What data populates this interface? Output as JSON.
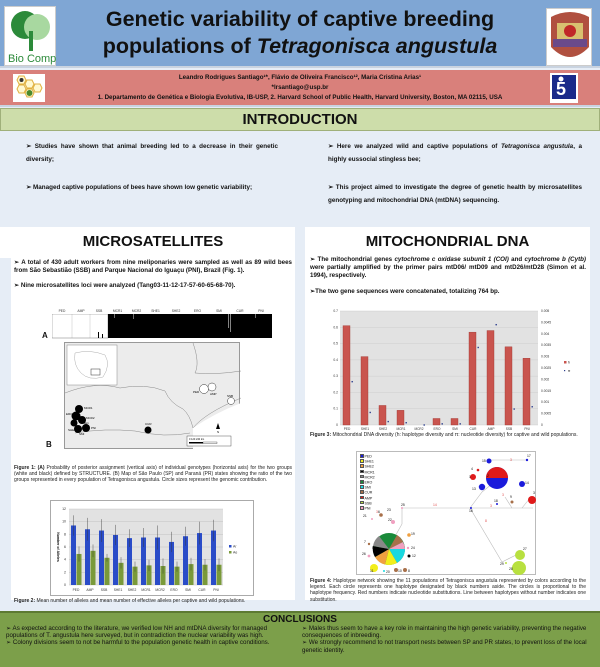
{
  "header": {
    "title_line1": "Genetic variability of captive breeding",
    "title_line2_prefix": "populations of ",
    "title_line2_species": "Tetragonisca angustula",
    "left_logo": {
      "name": "biocomp-logo",
      "text": "Bio Comp"
    },
    "right_logo": {
      "name": "usp-crest-logo"
    }
  },
  "authors": {
    "names": "Leandro Rodrigues Santiago¹*, Flávio de Oliveira Francisco¹², Maria Cristina Arias¹",
    "email": "*lrsantiago@usp.br",
    "affiliations": "1. Departamento de Genética e Biologia Evolutiva, IB-USP, 2. Harvard School of Public Health, Harvard  University, Boston, MA 02115, USA",
    "left_logo": "hexagon-bee-logo",
    "right_logo": "fapesp-logo"
  },
  "introduction": {
    "title": "INTRODUCTION",
    "bullets_left": [
      "➢ Studies have shown that animal breeding led to a decrease in their genetic diversity;",
      "➢  Managed captive populations of bees have shown low genetic variability;"
    ],
    "bullets_right": [
      {
        "pre": "➢  Here we analyzed wild and captive populations of ",
        "ital": "Tetragonisca angustula",
        "post": ", a highly eussocial stingless bee;"
      },
      {
        "pre": "➢  This project aimed to investigate the degree of genetic health by microsatellites genotyping and mitochondrial DNA (mtDNA) sequencing.",
        "ital": "",
        "post": ""
      }
    ]
  },
  "microsatellites": {
    "title": "MICROSATELLITES",
    "p1": "➢ A total of 430 adult workers from nine meliponaries were sampled as well as 89 wild bees from São Sebastião (SSB) and Parque Nacional do Iguaçu (PNI), Brazil (Fig. 1).",
    "p2": "➢ Nine microsatellites loci were analyzed (Tang03-11-12-17-57-60-65-68-70).",
    "structure_labels": [
      "PED",
      "AMP",
      "SSB",
      "MCR1",
      "MCR2",
      "SHE1",
      "SHE2",
      "ERO",
      "SMI",
      "CUR",
      "PNI"
    ],
    "panel_a": "A",
    "panel_b": "B",
    "map_labels": {
      "ped": "PED",
      "amp": "AMP",
      "ssb": "SSB",
      "mcr1": "MCR1",
      "mcr2": "MCR2",
      "she1": "SHE1",
      "she2": "SHE2",
      "ero": "ERO",
      "smi": "SMI",
      "pni": "PNI",
      "cur": "CUR",
      "north": "N",
      "scale": "0      120     240 km"
    },
    "fig1_caption_bold": "Figure 1: (A)",
    "fig1_caption": " Probability of posterior assignment (vertical axis) of individual genotypes (horizontal axis) for the two groups (white and black) defined by STRUCTURE. (B) Map of São Paulo (SP) and Paraná (PR) states showing the ratio of the two groups represented in every population of Tetragonisca angustula. Circle sizes represent the genomic contribution.",
    "fig2_caption_bold": "Figure 2:",
    "fig2_caption": "  Mean number of alleles and mean number of effective alleles per captive and wild populations."
  },
  "mtdna": {
    "title": "MITOCHONDRIAL DNA",
    "p1_a": "➢  The mitochondrial genes ",
    "p1_b": "cytochrome c oxidase subunit 1 (COI)",
    "p1_c": " and ",
    "p1_d": "cytochrome b (Cytb)",
    "p1_e": " were partially amplified by the primer pairs mtD06/ mtD09 and mtD26/mtD28 (Simon et al. 1994), respectively.",
    "p2": "➢The two gene sequences were concatenated, totalizing 764 bp.",
    "fig3_caption_bold": "Figure 3:",
    "fig3_caption": " Mitochondrial DNA diversity (h: haplotype diversity and π: nucleotide diversity) for captive and wild populations.",
    "fig4_caption_bold": "Figure 4:",
    "fig4_caption": " Haplotype network showing the 11 populations of Tetragonisca angustula represented by colors according to the legend. Each circle represents one haplotype designated by black numbers aside. The circles is proportional to the haplotype frequency. Red numbers indicate nucleotide substitutions. Line between haplotypes without number indicates one substitution.",
    "network_legend": [
      {
        "label": "PED",
        "color": "#1a1adb"
      },
      {
        "label": "SHE1",
        "color": "#f2ee1a"
      },
      {
        "label": "SHE2",
        "color": "#f0a040"
      },
      {
        "label": "MCR1",
        "color": "#000000"
      },
      {
        "label": "MCR2",
        "color": "#888888"
      },
      {
        "label": "ERO",
        "color": "#1a8a3a"
      },
      {
        "label": "SMI",
        "color": "#1ad8e0"
      },
      {
        "label": "CUR",
        "color": "#a8704a"
      },
      {
        "label": "AMP",
        "color": "#e01a1a"
      },
      {
        "label": "SSB",
        "color": "#b8e040"
      },
      {
        "label": "PNI",
        "color": "#f0a0c0"
      }
    ]
  },
  "conclusions": {
    "title": "CONCLUSIONS",
    "left": [
      "➢ As expected according to the literature, we verified low NH and mtDNA diversity for managed populations of T. angustula here surveyed, but in contradiction the nuclear variability was high.",
      "➢ Colony divisions seem to not be harmful to the population genetic health in captive conditions."
    ],
    "right": [
      "➢ Males thus seem to have a key role in maintaining the high genetic variability, preventing the negative consequences of inbreeding.",
      "➢ We strongly recommend to not transport nests between SP and PR states, to prevent loss of the local genetic identity."
    ]
  },
  "chart_data": [
    {
      "type": "bar",
      "title": "Figure 2: Mean number of alleles and mean number of effective alleles",
      "categories": [
        "PED",
        "AMP",
        "SSB",
        "SHE1",
        "SHE2",
        "MCR1",
        "MCR2",
        "ERO",
        "SMI",
        "CUR",
        "PNI"
      ],
      "series": [
        {
          "name": "Ar",
          "color": "#2a4cc8",
          "values": [
            9.4,
            8.8,
            8.6,
            7.9,
            7.4,
            7.5,
            7.5,
            6.8,
            7.7,
            8.2,
            8.6
          ],
          "errors": [
            1.6,
            1.8,
            1.8,
            1.6,
            1.4,
            1.5,
            1.9,
            1.6,
            1.5,
            1.8,
            1.7
          ]
        },
        {
          "name": "Ae",
          "color": "#7a9a3a",
          "values": [
            4.9,
            5.4,
            4.3,
            3.5,
            2.9,
            3.1,
            3.0,
            2.9,
            3.3,
            3.2,
            3.2
          ],
          "errors": [
            1.2,
            1.0,
            0.6,
            0.9,
            0.8,
            0.9,
            1.2,
            0.8,
            1.0,
            0.9,
            1.0
          ]
        }
      ],
      "xlabel": "",
      "ylabel": "Number of Alleles",
      "yticks": [
        0,
        2,
        4,
        6,
        8,
        10,
        12
      ],
      "ylim": [
        0,
        12
      ],
      "grid": true,
      "legend_position": "right"
    },
    {
      "type": "bar",
      "title": "Figure 3: Mitochondrial DNA diversity",
      "categories": [
        "PED",
        "SHE1",
        "SHE2",
        "MCR1",
        "MCR2",
        "ERO",
        "SMI",
        "CUR",
        "AMP",
        "SSB",
        "PNI"
      ],
      "series": [
        {
          "name": "h",
          "axis": "left",
          "chart": "bar",
          "color": "#c9544e",
          "values": [
            0.61,
            0.42,
            0.12,
            0.09,
            0.0,
            0.04,
            0.04,
            0.57,
            0.58,
            0.48,
            0.41
          ]
        },
        {
          "name": "π",
          "axis": "right",
          "chart": "scatter",
          "color": "#2a3c8c",
          "values": [
            0.0019,
            0.00055,
            0.00015,
            0.0001,
            0.0,
            5e-05,
            5e-05,
            0.0034,
            0.0044,
            0.0007,
            0.0008
          ]
        }
      ],
      "yticks_left": [
        0,
        0.1,
        0.2,
        0.3,
        0.4,
        0.5,
        0.6,
        0.7
      ],
      "ylim_left": [
        0,
        0.7
      ],
      "yticks_right": [
        0,
        0.0005,
        0.001,
        0.0015,
        0.002,
        0.0025,
        0.003,
        0.0035,
        0.004,
        0.0045,
        0.005
      ],
      "ylim_right": [
        0,
        0.005
      ],
      "grid": true,
      "legend_position": "right"
    }
  ]
}
